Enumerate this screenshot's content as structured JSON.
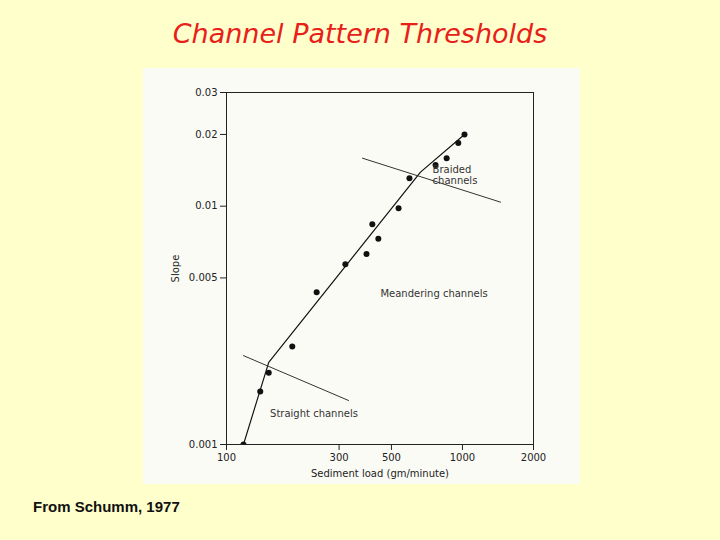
{
  "chart_data": {
    "type": "scatter",
    "title": "Channel Pattern Thresholds",
    "caption": "From Schumm, 1977",
    "x_label": "Sediment load (gm/minute)",
    "y_label": "Slope",
    "log": true,
    "color": "#111111",
    "x": [
      118,
      139,
      151,
      190,
      241,
      319,
      392,
      415,
      440,
      536,
      596,
      769,
      857,
      960,
      1020
    ],
    "values": [
      0.001,
      0.00167,
      0.002,
      0.00258,
      0.00435,
      0.0057,
      0.0063,
      0.0084,
      0.0073,
      0.0098,
      0.0131,
      0.0149,
      0.0159,
      0.0184,
      0.02
    ],
    "fit_line": {
      "x": [
        118,
        151,
        664,
        1020
      ],
      "values": [
        0.001,
        0.00221,
        0.0139,
        0.02
      ]
    },
    "thresholds": [
      {
        "x": [
          377,
          1450
        ],
        "values": [
          0.0159,
          0.0104
        ]
      },
      {
        "x": [
          118,
          329
        ],
        "values": [
          0.00236,
          0.00153
        ]
      }
    ],
    "annotations": [
      {
        "text": "Braided\nchannels",
        "x": 747,
        "y": 0.0135
      },
      {
        "text": "Meandering channels",
        "x": 449,
        "y": 0.0043
      },
      {
        "text": "Straight channels",
        "x": 153,
        "y": 0.00135
      }
    ],
    "xlim": [
      100,
      2000
    ],
    "xticks": [
      100,
      300,
      500,
      1000,
      2000
    ],
    "ylim": [
      0.001,
      0.03
    ],
    "yticks": [
      0.001,
      0.005,
      0.01,
      0.02,
      0.03
    ]
  }
}
